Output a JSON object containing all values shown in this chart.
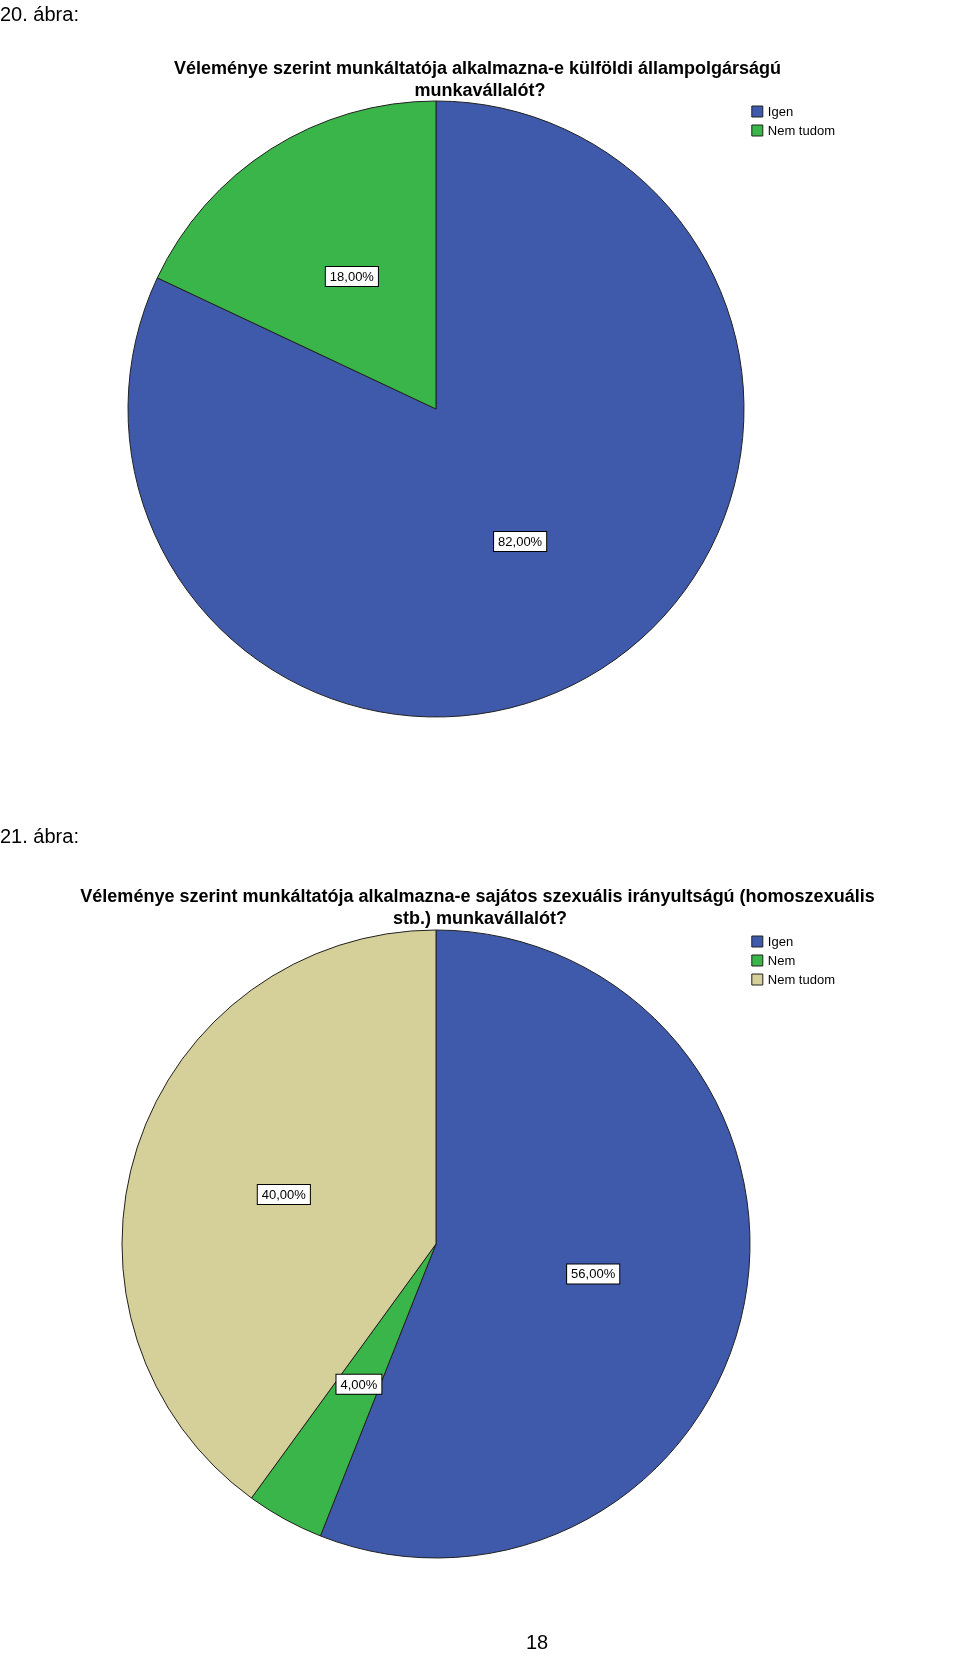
{
  "chart_data": [
    {
      "type": "pie",
      "title": "Véleménye szerint munkáltatója alkalmazna-e külföldi állampolgárságú munkavállalót?",
      "categories": [
        "Igen",
        "Nem tudom"
      ],
      "values": [
        82,
        18
      ],
      "colors": [
        "#3f59ab",
        "#3ab54a"
      ],
      "value_labels": [
        "82,00%",
        "18,00%"
      ],
      "legend": "top right",
      "annotations": [
        "20. ábra:"
      ]
    },
    {
      "type": "pie",
      "title": "Véleménye szerint munkáltatója alkalmazna-e sajátos szexuális irányultságú (homoszexuális stb.) munkavállalót?",
      "categories": [
        "Igen",
        "Nem",
        "Nem tudom"
      ],
      "values": [
        56,
        4,
        40
      ],
      "colors": [
        "#3f59ab",
        "#3ab54a",
        "#d5cf9a"
      ],
      "value_labels": [
        "56,00%",
        "4,00%",
        "40,00%"
      ],
      "legend": "top right",
      "annotations": [
        "21. ábra:",
        "18"
      ]
    }
  ]
}
